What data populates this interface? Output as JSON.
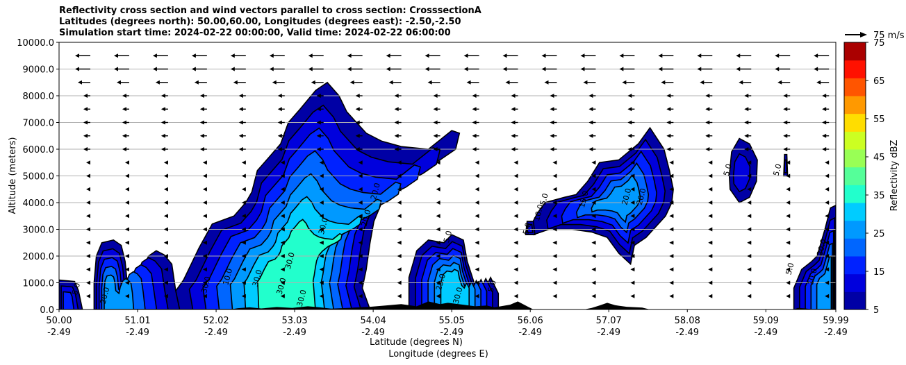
{
  "chart_data": {
    "type": "heatmap",
    "title_lines": [
      "Reflectivity cross section and wind vectors parallel to cross section: CrosssectionA",
      "Latitudes (degrees north): 50.00,60.00, Longitudes (degrees east): -2.50,-2.50",
      "Simulation start time: 2024-02-22 00:00:00, Valid time: 2024-02-22 06:00:00"
    ],
    "ylabel": "Altitude (meters)",
    "xlabel_1": "Latitude (degrees N)",
    "xlabel_2": "Longitude (degrees E)",
    "ylim": [
      0,
      10000
    ],
    "xlim": [
      50.0,
      59.99
    ],
    "grid": true,
    "x_ticks": [
      {
        "lat": "50.00",
        "lon": "-2.49",
        "value": 50.0
      },
      {
        "lat": "51.01",
        "lon": "-2.49",
        "value": 51.01
      },
      {
        "lat": "52.02",
        "lon": "-2.49",
        "value": 52.02
      },
      {
        "lat": "53.03",
        "lon": "-2.49",
        "value": 53.03
      },
      {
        "lat": "54.04",
        "lon": "-2.49",
        "value": 54.04
      },
      {
        "lat": "55.05",
        "lon": "-2.49",
        "value": 55.05
      },
      {
        "lat": "56.06",
        "lon": "-2.49",
        "value": 56.06
      },
      {
        "lat": "57.07",
        "lon": "-2.49",
        "value": 57.07
      },
      {
        "lat": "58.08",
        "lon": "-2.49",
        "value": 58.08
      },
      {
        "lat": "59.09",
        "lon": "-2.49",
        "value": 59.09
      },
      {
        "lat": "59.99",
        "lon": "-2.49",
        "value": 59.99
      }
    ],
    "y_ticks": [
      {
        "label": "0.0",
        "value": 0
      },
      {
        "label": "1000.0",
        "value": 1000
      },
      {
        "label": "2000.0",
        "value": 2000
      },
      {
        "label": "3000.0",
        "value": 3000
      },
      {
        "label": "4000.0",
        "value": 4000
      },
      {
        "label": "5000.0",
        "value": 5000
      },
      {
        "label": "6000.0",
        "value": 6000
      },
      {
        "label": "7000.0",
        "value": 7000
      },
      {
        "label": "8000.0",
        "value": 8000
      },
      {
        "label": "9000.0",
        "value": 9000
      },
      {
        "label": "10000.0",
        "value": 10000
      }
    ],
    "colorbar": {
      "label": "Reflectivity dBZ",
      "ticks": [
        "5",
        "15",
        "25",
        "35",
        "45",
        "55",
        "65",
        "75"
      ],
      "levels": [
        5,
        10,
        15,
        20,
        25,
        30,
        35,
        40,
        45,
        50,
        55,
        60,
        65,
        70,
        75
      ],
      "colors": [
        "#0000a5",
        "#0000dd",
        "#0022ff",
        "#0066ff",
        "#0099ff",
        "#00ccff",
        "#22ffcc",
        "#55ff99",
        "#99ff55",
        "#ccff22",
        "#ffdd00",
        "#ff9900",
        "#ff5500",
        "#ff1100",
        "#aa0000"
      ]
    },
    "wind_key": "75 m/s",
    "contour_labels": [
      "5.0",
      "10.0",
      "15.0",
      "20.0",
      "25.0",
      "30.0"
    ],
    "contour_label_positions": [
      {
        "text": "30.0",
        "lat": 53.43,
        "alt": 3100
      },
      {
        "text": "30.0",
        "lat": 53.0,
        "alt": 1800
      },
      {
        "text": "30.0",
        "lat": 52.58,
        "alt": 1150
      },
      {
        "text": "30.0",
        "lat": 52.89,
        "alt": 850
      },
      {
        "text": "30.0",
        "lat": 53.15,
        "alt": 400
      },
      {
        "text": "30.0",
        "lat": 55.16,
        "alt": 500
      },
      {
        "text": "30.0",
        "lat": 51.92,
        "alt": 900
      },
      {
        "text": "20.0",
        "lat": 53.98,
        "alt": 3400
      },
      {
        "text": "20.0",
        "lat": 57.33,
        "alt": 4200
      },
      {
        "text": "20.0",
        "lat": 57.52,
        "alt": 4200
      },
      {
        "text": "20.0",
        "lat": 59.84,
        "alt": 2300
      },
      {
        "text": "20.0",
        "lat": 54.1,
        "alt": 4400
      },
      {
        "text": "15.0",
        "lat": 56.78,
        "alt": 4100
      },
      {
        "text": "10.0",
        "lat": 56.2,
        "alt": 3600
      },
      {
        "text": "10.0",
        "lat": 59.72,
        "alt": 1200
      },
      {
        "text": "5.0",
        "lat": 56.05,
        "alt": 3000
      },
      {
        "text": "5.0",
        "lat": 56.27,
        "alt": 4100
      },
      {
        "text": "5.0",
        "lat": 55.03,
        "alt": 2700
      },
      {
        "text": "5.0",
        "lat": 58.63,
        "alt": 5200
      },
      {
        "text": "5.0",
        "lat": 59.27,
        "alt": 5200
      },
      {
        "text": "5.0",
        "lat": 59.43,
        "alt": 1500
      },
      {
        "text": "5.0",
        "lat": 50.25,
        "alt": 750
      },
      {
        "text": "5.0",
        "lat": 55.6,
        "alt": 850
      },
      {
        "text": "20.0",
        "lat": 50.62,
        "alt": 500
      },
      {
        "text": "10.0",
        "lat": 52.2,
        "alt": 1200
      },
      {
        "text": "25.0",
        "lat": 54.94,
        "alt": 1000
      }
    ]
  }
}
